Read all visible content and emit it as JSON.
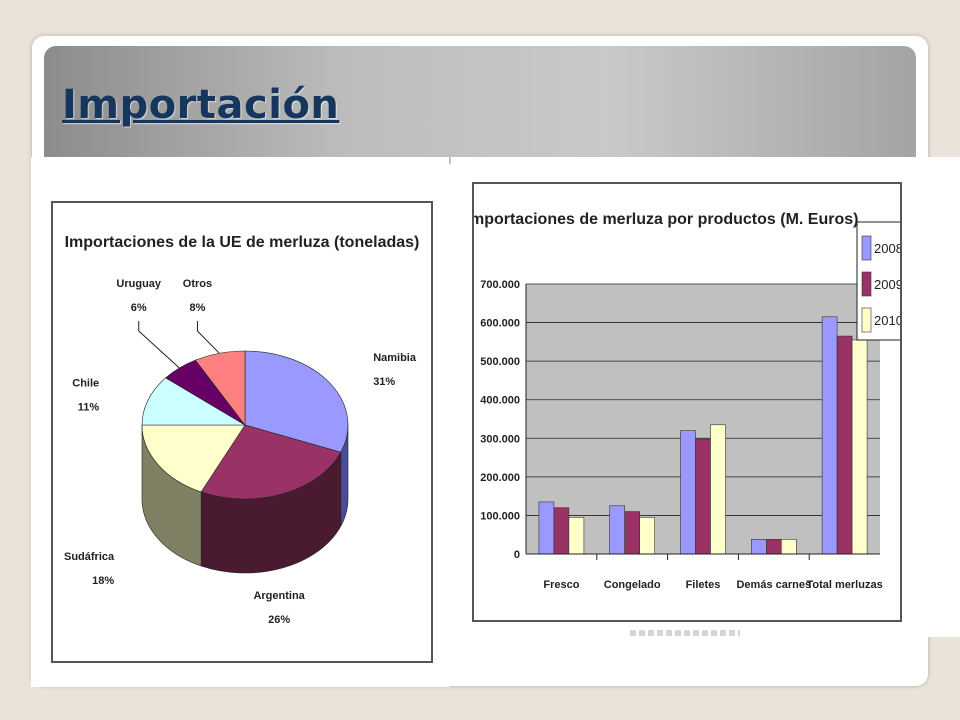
{
  "slide": {
    "title": "Importación"
  },
  "chart_data": [
    {
      "type": "pie",
      "title": "Importaciones de la UE de merluza (toneladas)",
      "slices": [
        {
          "label": "Namibia",
          "value": 31,
          "pct_label": "31%",
          "color": "#9999ff",
          "side_color": "#4b4b9a"
        },
        {
          "label": "Argentina",
          "value": 26,
          "pct_label": "26%",
          "color": "#993366",
          "side_color": "#4a1a30"
        },
        {
          "label": "Sudáfrica",
          "value": 18,
          "pct_label": "18%",
          "color": "#ffffcc",
          "side_color": "#808064"
        },
        {
          "label": "Chile",
          "value": 11,
          "pct_label": "11%",
          "color": "#ccffff",
          "side_color": "#648080"
        },
        {
          "label": "Uruguay",
          "value": 6,
          "pct_label": "6%",
          "color": "#660066",
          "side_color": "#330033"
        },
        {
          "label": "Otros",
          "value": 8,
          "pct_label": "8%",
          "color": "#ff8080",
          "side_color": "#804040"
        }
      ]
    },
    {
      "type": "bar",
      "title": "Importaciones de merluza por productos (M. Euros)",
      "categories": [
        "Fresco",
        "Congelado",
        "Filetes",
        "Demás carnes",
        "Total merluzas"
      ],
      "series": [
        {
          "name": "2008",
          "values": [
            135000,
            125000,
            320000,
            38000,
            615000
          ],
          "color": "#9999ff"
        },
        {
          "name": "2009",
          "values": [
            120000,
            110000,
            298000,
            38000,
            565000
          ],
          "color": "#993366"
        },
        {
          "name": "2010",
          "values": [
            95000,
            95000,
            335000,
            38000,
            555000
          ],
          "color": "#ffffcc"
        }
      ],
      "ylim": [
        0,
        700000
      ],
      "yticks": [
        "0",
        "100.000",
        "200.000",
        "300.000",
        "400.000",
        "500.000",
        "600.000",
        "700.000"
      ],
      "grid": true,
      "legend": "top-right",
      "plot_bg": "#c0c0c0"
    }
  ]
}
